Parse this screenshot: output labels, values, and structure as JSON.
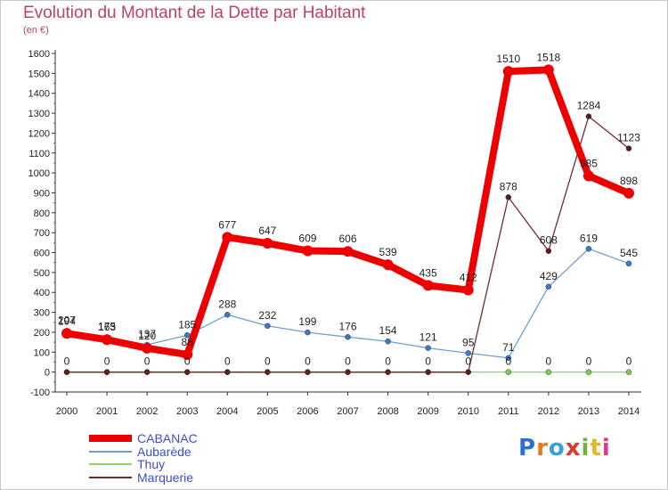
{
  "header": {
    "title": "Evolution du Montant de la Dette par Habitant",
    "unit": "(en €)"
  },
  "logo": {
    "text": "Proxiti",
    "colors": [
      "#2e6fd1",
      "#e8771e",
      "#3aa0d8",
      "#d83a2e",
      "#6db33f",
      "#e8b61e",
      "#d83a8e"
    ]
  },
  "chart_data": {
    "type": "line",
    "title": "Evolution du Montant de la Dette par Habitant",
    "subtitle": "(en €)",
    "xlabel": "",
    "ylabel": "",
    "x": [
      "2000",
      "2001",
      "2002",
      "2003",
      "2004",
      "2005",
      "2006",
      "2007",
      "2008",
      "2009",
      "2010",
      "2011",
      "2012",
      "2013",
      "2014"
    ],
    "ylim": [
      -100,
      1600
    ],
    "yticks": [
      "-100",
      "0",
      "100",
      "200",
      "300",
      "400",
      "500",
      "600",
      "700",
      "800",
      "900",
      "1000",
      "1100",
      "1200",
      "1300",
      "1400",
      "1500",
      "1600"
    ],
    "grid": false,
    "legend": "bottom-left",
    "series": [
      {
        "name": "Aubarède",
        "color": "#6fa0d0",
        "values": [
          207,
          175,
          137,
          185,
          288,
          232,
          199,
          176,
          154,
          121,
          95,
          71,
          429,
          619,
          545
        ],
        "labels": [
          "207",
          "175",
          "137",
          "185",
          "288",
          "232",
          "199",
          "176",
          "154",
          "121",
          "95",
          "71",
          "429",
          "619",
          "545"
        ]
      },
      {
        "name": "Thuy",
        "color": "#98d070",
        "values": [
          0,
          0,
          0,
          0,
          0,
          0,
          0,
          0,
          0,
          0,
          0,
          0,
          0,
          0,
          0
        ],
        "labels": [
          "",
          "",
          "",
          "",
          "",
          "",
          "",
          "",
          "",
          "",
          "",
          "0",
          "0",
          "0",
          "0"
        ]
      },
      {
        "name": "Marquerie",
        "color": "#7a2a2a",
        "values": [
          0,
          0,
          0,
          0,
          0,
          0,
          0,
          0,
          0,
          0,
          0,
          878,
          608,
          1284,
          1123
        ],
        "labels": [
          "0",
          "0",
          "0",
          "0",
          "0",
          "0",
          "0",
          "0",
          "0",
          "0",
          "0",
          "878",
          "608",
          "1284",
          "1123"
        ]
      },
      {
        "name": "CABANAC",
        "color": "#ee0000",
        "values": [
          194,
          163,
          120,
          88,
          677,
          647,
          609,
          606,
          539,
          435,
          412,
          1510,
          1518,
          985,
          898
        ],
        "labels": [
          "194",
          "163",
          "120",
          "88",
          "677",
          "647",
          "609",
          "606",
          "539",
          "435",
          "412",
          "1510",
          "1518",
          "985",
          "898"
        ]
      }
    ]
  }
}
